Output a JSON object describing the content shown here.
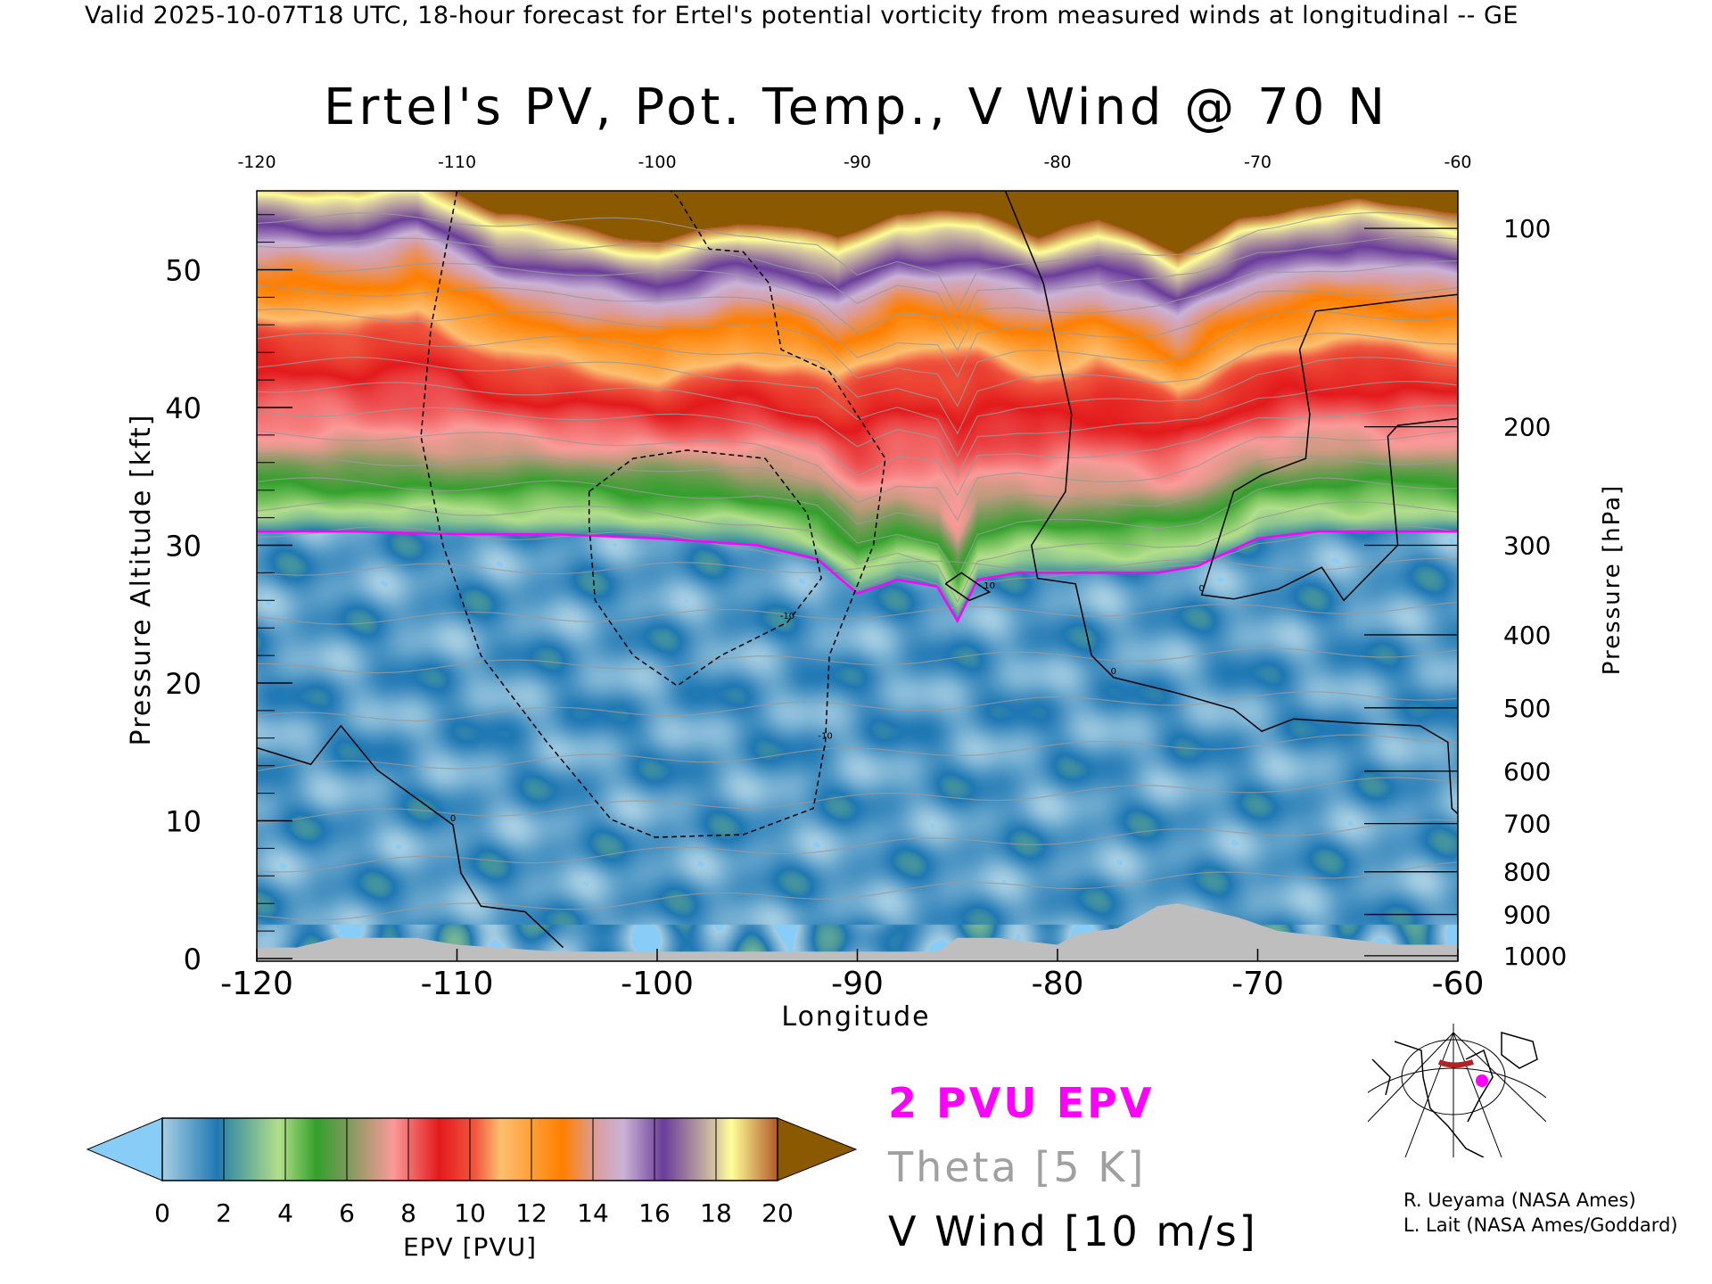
{
  "header": {
    "top_line": "Valid 2025-10-07T18 UTC, 18-hour forecast for Ertel's potential vorticity from measured winds at longitudinal -- GE",
    "title": "Ertel's PV, Pot. Temp., V Wind @ 70 N"
  },
  "chart_data": {
    "type": "heatmap",
    "title": "Ertel's PV, Pot. Temp., V Wind @ 70 N",
    "xlabel": "Longitude",
    "ylabel": "Pressure Altitude [kft]",
    "y2label": "Pressure [hPa]",
    "xlim": [
      -120,
      -60
    ],
    "ylim": [
      0,
      56
    ],
    "x_ticks": [
      "-120",
      "-110",
      "-100",
      "-90",
      "-80",
      "-70",
      "-60"
    ],
    "x_tick_values": [
      -120,
      -110,
      -100,
      -90,
      -80,
      -70,
      -60
    ],
    "y_ticks": [
      "0",
      "10",
      "20",
      "30",
      "40",
      "50"
    ],
    "y_tick_values": [
      0,
      10,
      20,
      30,
      40,
      50
    ],
    "pressure_ticks": [
      {
        "label": "100",
        "alt": 53.0
      },
      {
        "label": "200",
        "alt": 38.6
      },
      {
        "label": "300",
        "alt": 30.0
      },
      {
        "label": "400",
        "alt": 23.5
      },
      {
        "label": "500",
        "alt": 18.2
      },
      {
        "label": "600",
        "alt": 13.6
      },
      {
        "label": "700",
        "alt": 9.8
      },
      {
        "label": "800",
        "alt": 6.3
      },
      {
        "label": "900",
        "alt": 3.2
      },
      {
        "label": "1000",
        "alt": 0.2
      }
    ],
    "colorbar": {
      "label": "EPV [PVU]",
      "ticks": [
        "0",
        "2",
        "4",
        "6",
        "8",
        "10",
        "12",
        "14",
        "16",
        "18",
        "20"
      ],
      "under_color": "#87cdf7",
      "over_color": "#8b5a00",
      "stops": [
        [
          0,
          "#a6cee3"
        ],
        [
          1.8,
          "#1f78b4"
        ],
        [
          2.1,
          "#3d8fa0"
        ],
        [
          3.8,
          "#b2df8a"
        ],
        [
          5,
          "#33a02c"
        ],
        [
          6,
          "#7a9a5a"
        ],
        [
          7.5,
          "#fb9a99"
        ],
        [
          9,
          "#e31a1c"
        ],
        [
          10.2,
          "#f05a40"
        ],
        [
          11,
          "#fdbf6f"
        ],
        [
          13,
          "#ff7f00"
        ],
        [
          14.2,
          "#d8a0a8"
        ],
        [
          15,
          "#cab2d6"
        ],
        [
          16.3,
          "#6a3d9a"
        ],
        [
          18,
          "#d8c8a0"
        ],
        [
          18.5,
          "#ffff99"
        ],
        [
          20,
          "#b15928"
        ]
      ]
    },
    "tropopause_2pvu_kft": {
      "lon": [
        -120,
        -115,
        -110,
        -105,
        -100,
        -95,
        -92,
        -90,
        -88,
        -86,
        -85,
        -84,
        -82,
        -80,
        -78,
        -75,
        -73,
        -70,
        -67,
        -64,
        -60
      ],
      "alt": [
        31,
        31,
        30.8,
        30.8,
        30.5,
        30,
        29,
        26.5,
        27.5,
        27,
        24.5,
        27.5,
        28,
        28,
        28,
        28,
        28.5,
        30.5,
        31,
        31,
        31
      ]
    },
    "purple_base_kft": {
      "lon": [
        -120,
        -115,
        -112,
        -108,
        -104,
        -100,
        -96,
        -93,
        -91,
        -88,
        -84,
        -81,
        -78,
        -76,
        -74,
        -71,
        -68,
        -65,
        -60
      ],
      "alt": [
        51.5,
        51,
        52,
        49,
        48,
        47,
        48.5,
        48,
        47,
        49,
        49,
        47.5,
        48.5,
        47.5,
        46,
        48.5,
        49.5,
        50,
        49
      ]
    },
    "terrain_kft": {
      "lon": [
        -120,
        -118,
        -116,
        -112,
        -110,
        -105,
        -95,
        -90,
        -86,
        -85,
        -83,
        -80,
        -79,
        -77,
        -76,
        -75,
        -74,
        -71,
        -69,
        -66,
        -63,
        -60
      ],
      "alt": [
        0.8,
        0.8,
        1.5,
        1.5,
        1.0,
        0.5,
        0.5,
        0.5,
        0.5,
        1.5,
        1.5,
        1.0,
        1.8,
        2.2,
        3.0,
        3.8,
        4.0,
        3.0,
        2.0,
        1.5,
        1.0,
        1.0
      ]
    },
    "v_wind_contours": [
      {
        "level": "-10",
        "style": "dashed",
        "points": [
          [
            -110,
            55.7
          ],
          [
            -111.3,
            45.8
          ],
          [
            -111.8,
            37.9
          ],
          [
            -110.7,
            30
          ],
          [
            -108.8,
            22
          ],
          [
            -105.5,
            15.7
          ],
          [
            -102.3,
            10.1
          ],
          [
            -100.1,
            8.8
          ],
          [
            -95.7,
            9
          ],
          [
            -92.2,
            10.9
          ],
          [
            -91.6,
            15.7
          ],
          [
            -91.4,
            22
          ],
          [
            -89.2,
            30
          ],
          [
            -88.6,
            36.3
          ],
          [
            -91.4,
            42.6
          ],
          [
            -93.8,
            44.2
          ],
          [
            -94.4,
            49
          ],
          [
            -95.7,
            51.3
          ],
          [
            -97.4,
            51.5
          ],
          [
            -99,
            55.3
          ],
          [
            -99.3,
            55.7
          ]
        ]
      },
      {
        "level": "-10",
        "style": "dashed",
        "points": [
          [
            -103.4,
            33.9
          ],
          [
            -101.2,
            36.3
          ],
          [
            -98.5,
            36.9
          ],
          [
            -94.6,
            36.3
          ],
          [
            -92.5,
            32.3
          ],
          [
            -91.8,
            27.6
          ],
          [
            -93.5,
            24.4
          ],
          [
            -96.8,
            22
          ],
          [
            -99,
            19.8
          ],
          [
            -101.2,
            22
          ],
          [
            -103.1,
            26
          ],
          [
            -103.4,
            31.5
          ],
          [
            -103.4,
            33.9
          ]
        ]
      },
      {
        "level": "0",
        "style": "solid",
        "points": [
          [
            -82.6,
            55.7
          ],
          [
            -80.7,
            49
          ],
          [
            -79.9,
            43.4
          ],
          [
            -79.3,
            39.5
          ],
          [
            -79.6,
            33.9
          ],
          [
            -81.3,
            30
          ],
          [
            -81,
            27.6
          ],
          [
            -79.1,
            27.2
          ],
          [
            -78.3,
            22
          ],
          [
            -77.2,
            20.4
          ],
          [
            -74.1,
            19.3
          ],
          [
            -71.2,
            18.1
          ],
          [
            -69.8,
            16.5
          ],
          [
            -68.2,
            17.4
          ],
          [
            -65.2,
            17.1
          ],
          [
            -61.9,
            16.9
          ],
          [
            -60.5,
            15.7
          ],
          [
            -60.3,
            10.9
          ],
          [
            -60,
            10.5
          ]
        ]
      },
      {
        "level": "0",
        "style": "solid",
        "points": [
          [
            -120,
            15.3
          ],
          [
            -117.3,
            14.1
          ],
          [
            -115.8,
            16.9
          ],
          [
            -114,
            13.7
          ],
          [
            -110.2,
            9.7
          ],
          [
            -109.8,
            6.2
          ],
          [
            -108.8,
            3.8
          ],
          [
            -106.6,
            3.4
          ],
          [
            -104.7,
            0.8
          ]
        ]
      },
      {
        "level": "0",
        "style": "solid",
        "points": [
          [
            -60,
            39.2
          ],
          [
            -63,
            38.7
          ],
          [
            -63.5,
            37.9
          ],
          [
            -63,
            30
          ],
          [
            -65.7,
            26
          ],
          [
            -66.8,
            28.4
          ],
          [
            -69,
            26.8
          ],
          [
            -71.2,
            26.1
          ],
          [
            -72.8,
            26.4
          ],
          [
            -71.2,
            33.9
          ],
          [
            -69.8,
            35.1
          ],
          [
            -67.6,
            36.3
          ],
          [
            -67.4,
            39.5
          ],
          [
            -67.9,
            44.2
          ],
          [
            -67.1,
            47
          ],
          [
            -62.6,
            47.8
          ],
          [
            -60,
            48.2
          ]
        ]
      },
      {
        "level": "10",
        "style": "solid",
        "points": [
          [
            -85.6,
            27.2
          ],
          [
            -84.4,
            26.0
          ],
          [
            -83.4,
            26.6
          ],
          [
            -84.8,
            28.0
          ],
          [
            -85.6,
            27.2
          ]
        ]
      }
    ],
    "theta_interval_K": 5
  },
  "legend": {
    "pvu": "2 PVU EPV",
    "theta": "Theta [5 K]",
    "vwind": "V Wind [10 m/s]",
    "pvu_color": "#ff00ff",
    "theta_color": "#a0a0a0"
  },
  "credits": {
    "line1": "R. Ueyama (NASA Ames)",
    "line2": "L. Lait (NASA Ames/Goddard)"
  }
}
